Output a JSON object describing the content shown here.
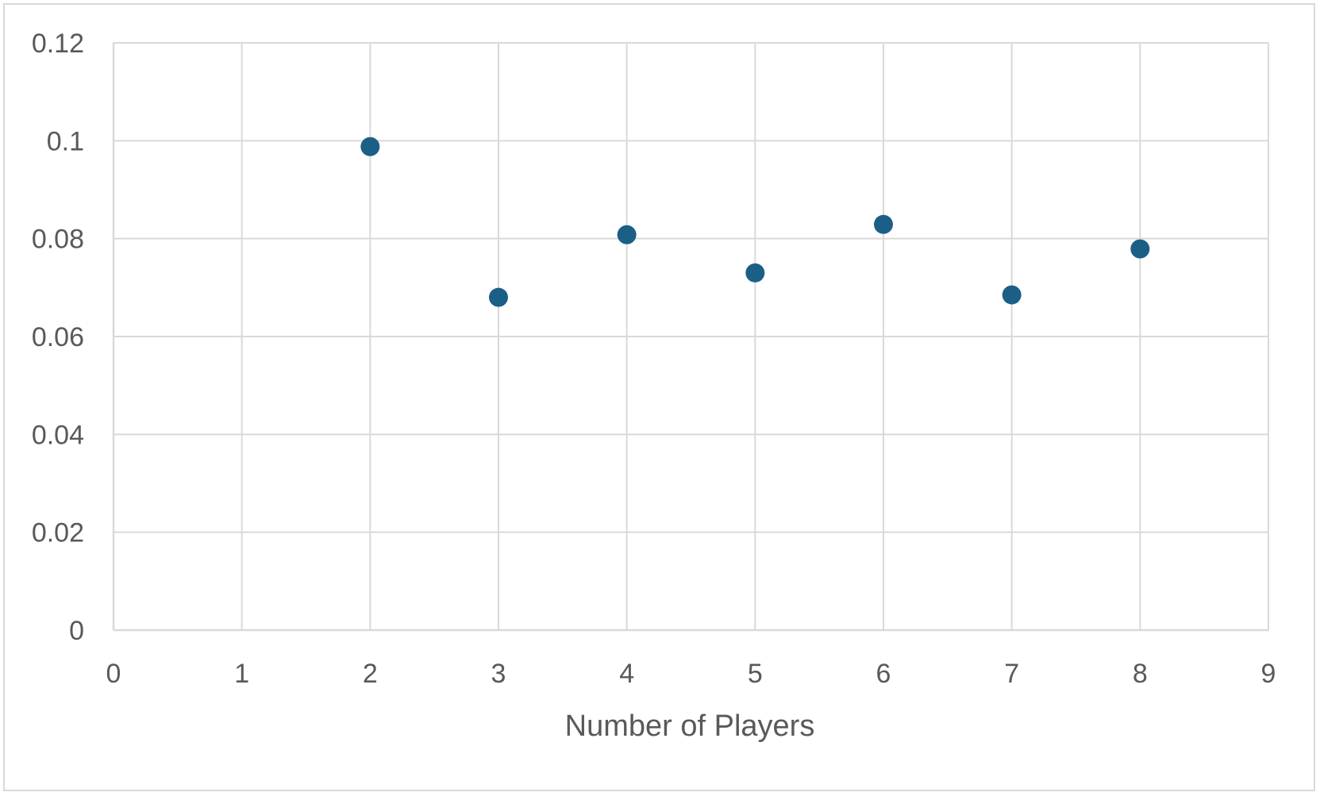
{
  "chart_data": {
    "type": "scatter",
    "title": "",
    "xlabel": "Number of Players",
    "ylabel": "",
    "xlim": [
      0,
      9
    ],
    "ylim": [
      0,
      0.12
    ],
    "x_ticks": [
      "0",
      "1",
      "2",
      "3",
      "4",
      "5",
      "6",
      "7",
      "8",
      "9"
    ],
    "y_ticks": [
      "0",
      "0.02",
      "0.04",
      "0.06",
      "0.08",
      "0.1",
      "0.12"
    ],
    "grid": true,
    "legend": "none",
    "marker_color": "#1b5f86",
    "series": [
      {
        "x": [
          2,
          3,
          4,
          5,
          6,
          7,
          8
        ],
        "y": [
          0.0988,
          0.068,
          0.0808,
          0.073,
          0.0829,
          0.0685,
          0.0779
        ]
      }
    ]
  }
}
